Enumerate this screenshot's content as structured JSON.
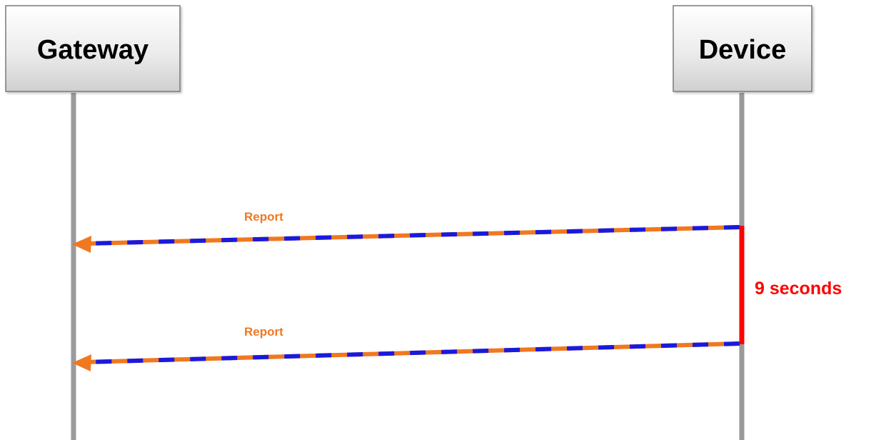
{
  "participants": [
    {
      "name": "Gateway"
    },
    {
      "name": "Device"
    }
  ],
  "messages": [
    {
      "label": "Report",
      "from": "Device",
      "to": "Gateway"
    },
    {
      "label": "Report",
      "from": "Device",
      "to": "Gateway"
    }
  ],
  "interval": {
    "label": "9 seconds"
  },
  "colors": {
    "lifeline": "#9a9a9a",
    "arrow_primary": "#f07820",
    "arrow_secondary": "#1a1adc",
    "interval": "#ff0000",
    "actor_box_border": "#7a7a7a"
  }
}
